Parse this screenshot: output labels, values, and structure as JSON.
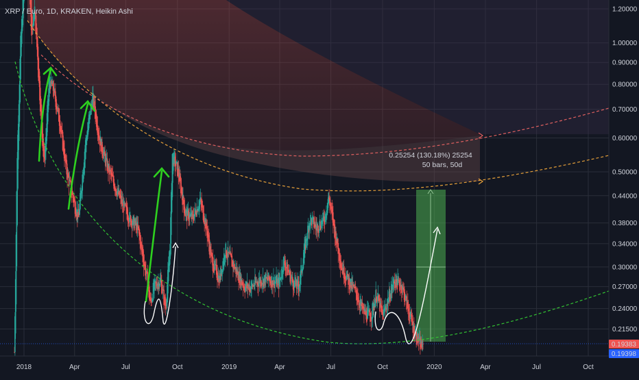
{
  "header": {
    "ticker": "XRP / Euro, 1D, KRAKEN, Heikin Ashi"
  },
  "colors": {
    "background": "#131722",
    "grid": "#2a2e39",
    "up_candle": "#26a69a",
    "down_candle": "#ef5350",
    "green_arrows": "#2ed11f",
    "green_curve": "#33c433",
    "orange_curve": "#e8a13a",
    "red_curve": "#e06060",
    "price_tag_red": "#ef5350",
    "price_tag_blue": "#2962ff",
    "measure_box": "#4caf50"
  },
  "measure": {
    "line1": "0.25254 (130.18%) 25254",
    "line2": "50 bars, 50d"
  },
  "price_tags": {
    "current": "0.19383",
    "previous": "0.19398"
  },
  "chart_data": {
    "type": "candlestick",
    "title": "XRP / Euro, 1D, KRAKEN, Heikin Ashi",
    "chart_style": "Heikin Ashi",
    "y_scale": "log",
    "grid": true,
    "yticks": [
      {
        "value": 1.2,
        "label": "1.20000"
      },
      {
        "value": 1.0,
        "label": "1.00000"
      },
      {
        "value": 0.9,
        "label": "0.90000"
      },
      {
        "value": 0.8,
        "label": "0.80000"
      },
      {
        "value": 0.7,
        "label": "0.70000"
      },
      {
        "value": 0.6,
        "label": "0.60000"
      },
      {
        "value": 0.5,
        "label": "0.50000"
      },
      {
        "value": 0.44,
        "label": "0.44000"
      },
      {
        "value": 0.38,
        "label": "0.38000"
      },
      {
        "value": 0.34,
        "label": "0.34000"
      },
      {
        "value": 0.3,
        "label": "0.30000"
      },
      {
        "value": 0.27,
        "label": "0.27000"
      },
      {
        "value": 0.24,
        "label": "0.24000"
      },
      {
        "value": 0.215,
        "label": "0.21500"
      }
    ],
    "xticks": [
      {
        "date": "2018-01-01",
        "label": "2018"
      },
      {
        "date": "2018-04-01",
        "label": "Apr"
      },
      {
        "date": "2018-07-01",
        "label": "Jul"
      },
      {
        "date": "2018-10-01",
        "label": "Oct"
      },
      {
        "date": "2019-01-01",
        "label": "2019"
      },
      {
        "date": "2019-04-01",
        "label": "Apr"
      },
      {
        "date": "2019-07-01",
        "label": "Jul"
      },
      {
        "date": "2019-10-01",
        "label": "Oct"
      },
      {
        "date": "2020-01-01",
        "label": "2020"
      },
      {
        "date": "2020-04-01",
        "label": "Apr"
      },
      {
        "date": "2020-07-01",
        "label": "Jul"
      },
      {
        "date": "2020-10-01",
        "label": "Oct"
      }
    ],
    "price_path": [
      [
        "2017-12-15",
        0.19
      ],
      [
        "2017-12-20",
        0.55
      ],
      [
        "2017-12-26",
        1.0
      ],
      [
        "2018-01-02",
        1.45
      ],
      [
        "2018-01-08",
        1.6
      ],
      [
        "2018-01-15",
        1.05
      ],
      [
        "2018-01-20",
        1.2
      ],
      [
        "2018-02-01",
        0.65
      ],
      [
        "2018-02-06",
        0.52
      ],
      [
        "2018-02-15",
        0.82
      ],
      [
        "2018-02-22",
        0.78
      ],
      [
        "2018-03-05",
        0.66
      ],
      [
        "2018-03-18",
        0.5
      ],
      [
        "2018-04-01",
        0.42
      ],
      [
        "2018-04-08",
        0.39
      ],
      [
        "2018-04-20",
        0.58
      ],
      [
        "2018-05-03",
        0.75
      ],
      [
        "2018-05-15",
        0.6
      ],
      [
        "2018-05-28",
        0.52
      ],
      [
        "2018-06-10",
        0.47
      ],
      [
        "2018-06-25",
        0.42
      ],
      [
        "2018-07-08",
        0.39
      ],
      [
        "2018-07-22",
        0.37
      ],
      [
        "2018-08-08",
        0.28
      ],
      [
        "2018-08-14",
        0.245
      ],
      [
        "2018-08-20",
        0.27
      ],
      [
        "2018-09-01",
        0.28
      ],
      [
        "2018-09-10",
        0.24
      ],
      [
        "2018-09-18",
        0.34
      ],
      [
        "2018-09-22",
        0.55
      ],
      [
        "2018-10-02",
        0.5
      ],
      [
        "2018-10-15",
        0.4
      ],
      [
        "2018-10-28",
        0.39
      ],
      [
        "2018-11-10",
        0.43
      ],
      [
        "2018-11-20",
        0.38
      ],
      [
        "2018-12-01",
        0.31
      ],
      [
        "2018-12-15",
        0.28
      ],
      [
        "2018-12-25",
        0.33
      ],
      [
        "2019-01-10",
        0.3
      ],
      [
        "2019-01-28",
        0.27
      ],
      [
        "2019-02-10",
        0.27
      ],
      [
        "2019-02-25",
        0.28
      ],
      [
        "2019-03-15",
        0.28
      ],
      [
        "2019-03-31",
        0.275
      ],
      [
        "2019-04-08",
        0.31
      ],
      [
        "2019-04-25",
        0.275
      ],
      [
        "2019-05-05",
        0.27
      ],
      [
        "2019-05-15",
        0.33
      ],
      [
        "2019-05-25",
        0.39
      ],
      [
        "2019-06-05",
        0.37
      ],
      [
        "2019-06-20",
        0.39
      ],
      [
        "2019-06-27",
        0.44
      ],
      [
        "2019-07-05",
        0.38
      ],
      [
        "2019-07-20",
        0.3
      ],
      [
        "2019-08-01",
        0.28
      ],
      [
        "2019-08-15",
        0.26
      ],
      [
        "2019-08-28",
        0.235
      ],
      [
        "2019-09-10",
        0.23
      ],
      [
        "2019-09-20",
        0.26
      ],
      [
        "2019-10-01",
        0.23
      ],
      [
        "2019-10-10",
        0.25
      ],
      [
        "2019-10-22",
        0.28
      ],
      [
        "2019-11-05",
        0.27
      ],
      [
        "2019-11-15",
        0.24
      ],
      [
        "2019-11-25",
        0.215
      ],
      [
        "2019-12-05",
        0.2
      ],
      [
        "2019-12-12",
        0.194
      ]
    ]
  }
}
